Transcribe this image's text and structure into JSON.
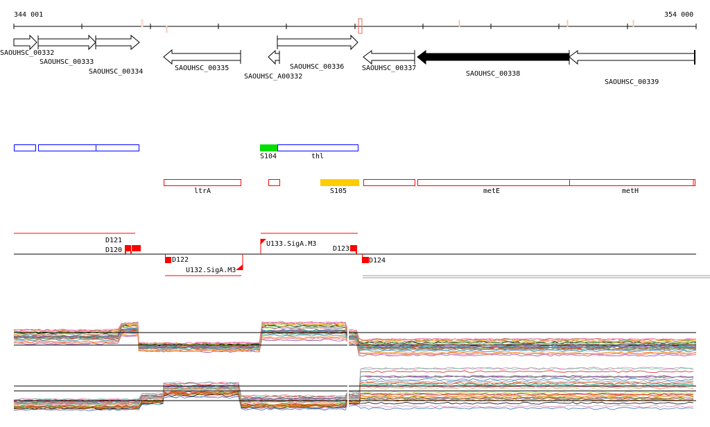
{
  "ruler": {
    "start_label": "344 001",
    "end_label": "354 000"
  },
  "genes": [
    {
      "name": "SAOUHSC_00332",
      "strand": "+"
    },
    {
      "name": "SAOUHSC_00333",
      "strand": "+"
    },
    {
      "name": "SAOUHSC_00334",
      "strand": "+"
    },
    {
      "name": "SAOUHSC_00335",
      "strand": "-"
    },
    {
      "name": "SAOUHSC_A00332",
      "strand": "-"
    },
    {
      "name": "SAOUHSC_00336",
      "strand": "+"
    },
    {
      "name": "SAOUHSC_00337",
      "strand": "-"
    },
    {
      "name": "SAOUHSC_00338",
      "strand": "-",
      "highlighted": true
    },
    {
      "name": "SAOUHSC_00339",
      "strand": "-"
    }
  ],
  "operons_forward": [
    {
      "label": "S104",
      "color": "#00dd00"
    },
    {
      "label": "thl",
      "color": "#0000ff"
    }
  ],
  "operons_reverse": [
    {
      "label": "ltrA",
      "color": "#ff0000"
    },
    {
      "label": "S105",
      "color": "#ffcc00"
    },
    {
      "label": "metE",
      "color": "#ff0000"
    },
    {
      "label": "metH",
      "color": "#ff0000"
    }
  ],
  "features": {
    "d120": "D120",
    "d121": "D121",
    "d122": "D122",
    "d123": "D123",
    "d124": "D124",
    "u132": "U132.SigA.M3",
    "u133": "U133.SigA.M3"
  },
  "colors": {
    "accent": "#ff0000",
    "blue": "#0000ff",
    "green": "#00dd00",
    "orange": "#ffcc00"
  }
}
